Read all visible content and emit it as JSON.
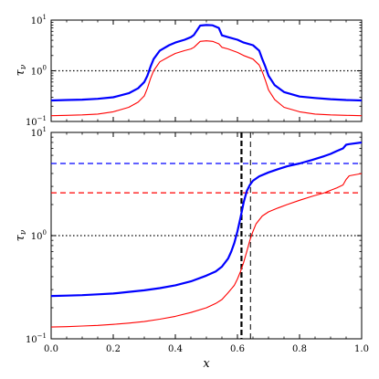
{
  "chart_data": [
    {
      "type": "line",
      "panel": "top",
      "ylabel": "τ",
      "ylabel_sub": "ν",
      "xlabel": "",
      "xlim": [
        0,
        1
      ],
      "ylim": [
        0.1,
        10
      ],
      "yscale": "log",
      "grid": false,
      "yticks": [
        {
          "value": 0.1,
          "base": "10",
          "exp": "−1"
        },
        {
          "value": 1,
          "base": "10",
          "exp": "0"
        },
        {
          "value": 10,
          "base": "10",
          "exp": "1"
        }
      ],
      "series": [
        {
          "color": "#0000ff",
          "x": [
            0.0,
            0.05,
            0.1,
            0.15,
            0.2,
            0.25,
            0.28,
            0.3,
            0.31,
            0.32,
            0.33,
            0.35,
            0.38,
            0.4,
            0.43,
            0.45,
            0.46,
            0.48,
            0.5,
            0.52,
            0.54,
            0.55,
            0.57,
            0.6,
            0.62,
            0.65,
            0.67,
            0.68,
            0.69,
            0.7,
            0.72,
            0.75,
            0.8,
            0.85,
            0.9,
            0.95,
            1.0
          ],
          "y": [
            0.26,
            0.265,
            0.27,
            0.28,
            0.3,
            0.36,
            0.45,
            0.6,
            0.8,
            1.2,
            1.7,
            2.5,
            3.2,
            3.6,
            4.1,
            4.6,
            5.1,
            7.8,
            8.0,
            7.9,
            7.0,
            5.0,
            4.6,
            4.1,
            3.6,
            3.2,
            2.5,
            1.7,
            1.2,
            0.8,
            0.52,
            0.38,
            0.31,
            0.29,
            0.275,
            0.265,
            0.26
          ]
        },
        {
          "color": "#ff0000",
          "x": [
            0.0,
            0.05,
            0.1,
            0.15,
            0.2,
            0.25,
            0.28,
            0.3,
            0.31,
            0.32,
            0.33,
            0.35,
            0.38,
            0.4,
            0.43,
            0.45,
            0.46,
            0.48,
            0.5,
            0.52,
            0.54,
            0.55,
            0.57,
            0.6,
            0.62,
            0.65,
            0.67,
            0.68,
            0.69,
            0.7,
            0.72,
            0.75,
            0.8,
            0.85,
            0.9,
            0.95,
            1.0
          ],
          "y": [
            0.13,
            0.132,
            0.135,
            0.14,
            0.155,
            0.19,
            0.24,
            0.32,
            0.45,
            0.7,
            1.0,
            1.5,
            1.9,
            2.2,
            2.5,
            2.7,
            2.9,
            3.8,
            3.9,
            3.8,
            3.4,
            2.9,
            2.7,
            2.3,
            2.0,
            1.7,
            1.3,
            0.95,
            0.65,
            0.42,
            0.27,
            0.19,
            0.155,
            0.14,
            0.135,
            0.132,
            0.13
          ]
        }
      ],
      "hlines": [
        {
          "y": 1,
          "color": "#000000",
          "style": "dotted"
        }
      ],
      "vlines": []
    },
    {
      "type": "line",
      "panel": "bottom",
      "ylabel": "τ",
      "ylabel_sub": "ν",
      "xlabel": "x",
      "xlim": [
        0,
        1
      ],
      "ylim": [
        0.1,
        10
      ],
      "yscale": "log",
      "grid": false,
      "xticks": [
        {
          "value": 0.0,
          "label": "0.0"
        },
        {
          "value": 0.2,
          "label": "0.2"
        },
        {
          "value": 0.4,
          "label": "0.4"
        },
        {
          "value": 0.6,
          "label": "0.6"
        },
        {
          "value": 0.8,
          "label": "0.8"
        },
        {
          "value": 1.0,
          "label": "1.0"
        }
      ],
      "yticks": [
        {
          "value": 0.1,
          "base": "10",
          "exp": "−1"
        },
        {
          "value": 1,
          "base": "10",
          "exp": "0"
        },
        {
          "value": 10,
          "base": "10",
          "exp": "1"
        }
      ],
      "series": [
        {
          "color": "#0000ff",
          "x": [
            0.0,
            0.05,
            0.1,
            0.15,
            0.2,
            0.25,
            0.3,
            0.35,
            0.4,
            0.45,
            0.5,
            0.53,
            0.55,
            0.57,
            0.58,
            0.59,
            0.6,
            0.61,
            0.62,
            0.63,
            0.64,
            0.65,
            0.67,
            0.7,
            0.73,
            0.76,
            0.8,
            0.84,
            0.88,
            0.9,
            0.92,
            0.94,
            0.95,
            0.96,
            1.0
          ],
          "y": [
            0.26,
            0.262,
            0.265,
            0.27,
            0.275,
            0.285,
            0.295,
            0.31,
            0.33,
            0.36,
            0.41,
            0.45,
            0.5,
            0.6,
            0.7,
            0.85,
            1.1,
            1.5,
            2.1,
            2.7,
            3.1,
            3.4,
            3.75,
            4.1,
            4.4,
            4.7,
            5.0,
            5.4,
            5.9,
            6.2,
            6.6,
            7.0,
            7.6,
            7.7,
            8.0
          ]
        },
        {
          "color": "#ff0000",
          "x": [
            0.0,
            0.05,
            0.1,
            0.15,
            0.2,
            0.25,
            0.3,
            0.35,
            0.4,
            0.45,
            0.5,
            0.53,
            0.55,
            0.57,
            0.59,
            0.6,
            0.61,
            0.62,
            0.63,
            0.64,
            0.65,
            0.66,
            0.68,
            0.7,
            0.73,
            0.76,
            0.8,
            0.84,
            0.88,
            0.9,
            0.92,
            0.94,
            0.95,
            0.96,
            1.0
          ],
          "y": [
            0.13,
            0.131,
            0.133,
            0.135,
            0.138,
            0.142,
            0.147,
            0.155,
            0.165,
            0.18,
            0.2,
            0.22,
            0.24,
            0.28,
            0.33,
            0.38,
            0.45,
            0.55,
            0.7,
            0.9,
            1.1,
            1.3,
            1.55,
            1.7,
            1.85,
            2.0,
            2.2,
            2.4,
            2.6,
            2.75,
            2.9,
            3.1,
            3.5,
            3.8,
            4.0
          ]
        }
      ],
      "hlines": [
        {
          "y": 5.0,
          "color": "#0000ff",
          "style": "dashed"
        },
        {
          "y": 2.6,
          "color": "#ff0000",
          "style": "dashed"
        },
        {
          "y": 1,
          "color": "#000000",
          "style": "dotted"
        }
      ],
      "vlines": [
        {
          "x": 0.613,
          "color": "#000000",
          "style": "dashed",
          "weight": "thick"
        },
        {
          "x": 0.642,
          "color": "#000000",
          "style": "dashed",
          "weight": "thin"
        }
      ]
    }
  ]
}
